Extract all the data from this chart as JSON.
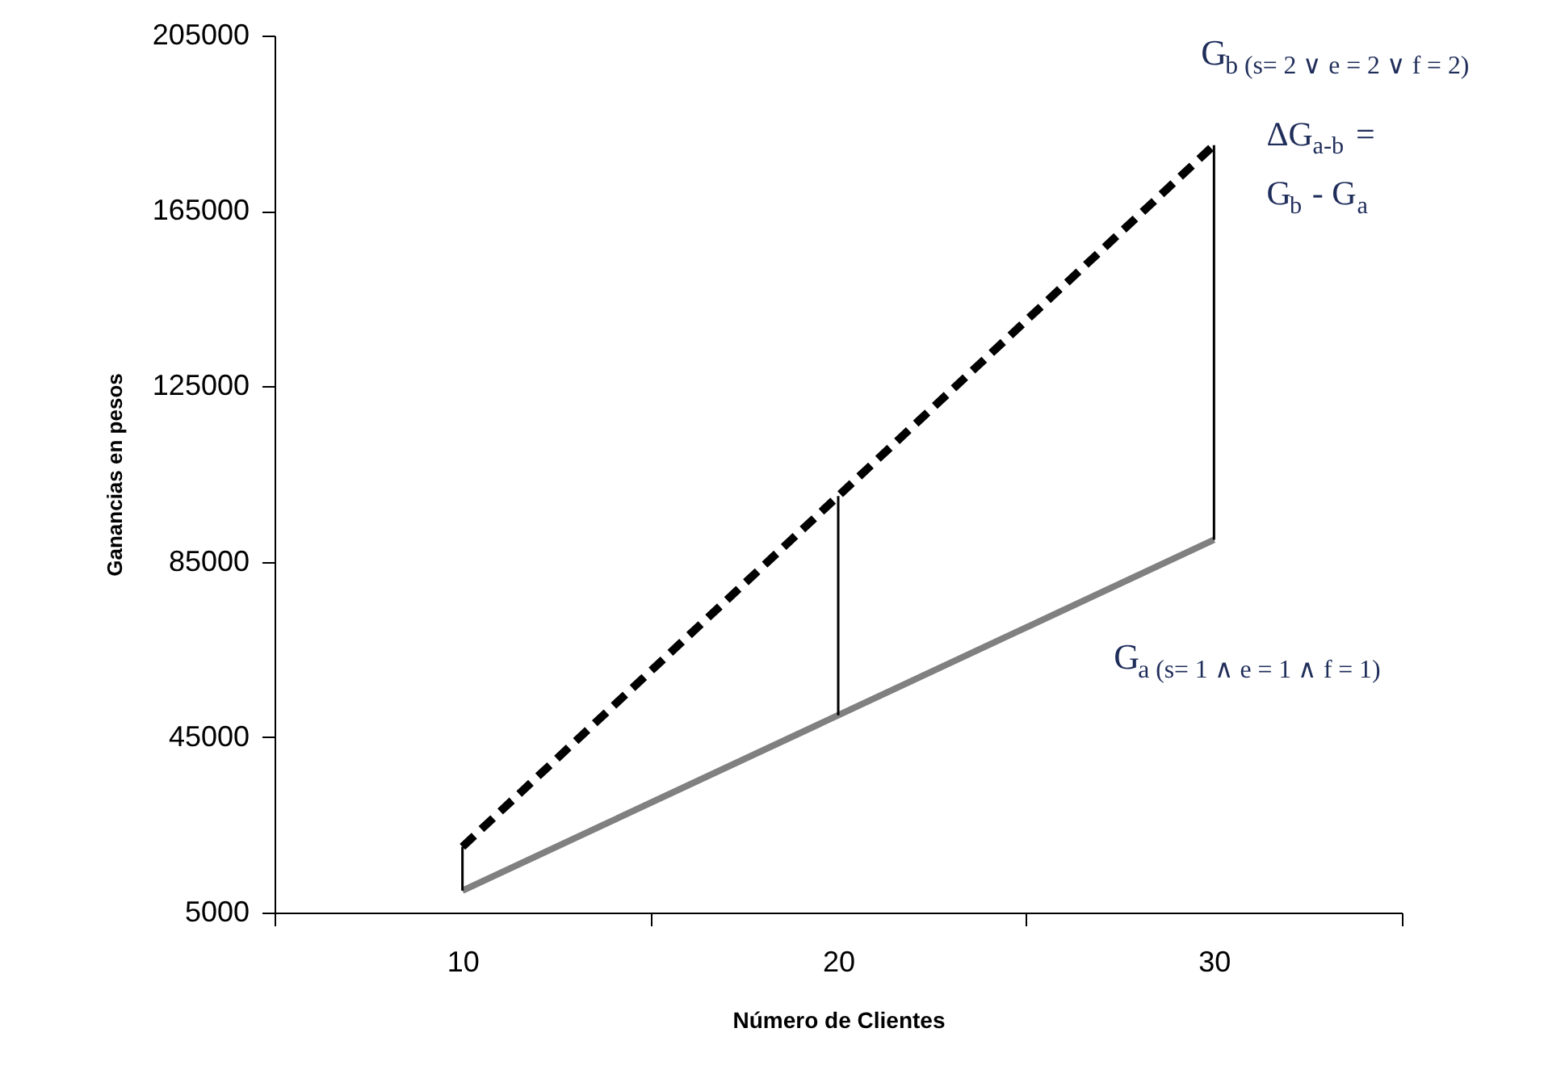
{
  "chart_data": {
    "type": "line",
    "xlabel": "Número de Clientes",
    "ylabel": "Ganancias  en pesos",
    "categories": [
      "10",
      "20",
      "30"
    ],
    "ylim": [
      5000,
      205000
    ],
    "yticks": [
      5000,
      45000,
      85000,
      125000,
      165000,
      205000
    ],
    "marker": "none",
    "series": [
      {
        "name": "G$_{b (s= 2 ∨ e = 2 ∨ f = 2)}$",
        "color": "#000000",
        "line_style": "dashed",
        "values": [
          20000,
          100000,
          180000
        ]
      },
      {
        "name": "G$_{a (s= 1 ∧ e = 1 ∧ f = 1)}$",
        "color": "#808080",
        "line_style": "solid",
        "values": [
          10000,
          50000,
          90000
        ]
      },
      {
        "type": "bar",
        "color": "#000000",
        "base": [
          10000,
          50000,
          90000
        ],
        "values": [
          10000,
          50000,
          90000
        ]
      }
    ],
    "annotations": [
      "ΔG$_{a-b}$ =\nG$_{b}$ - G$_{a}$"
    ]
  }
}
